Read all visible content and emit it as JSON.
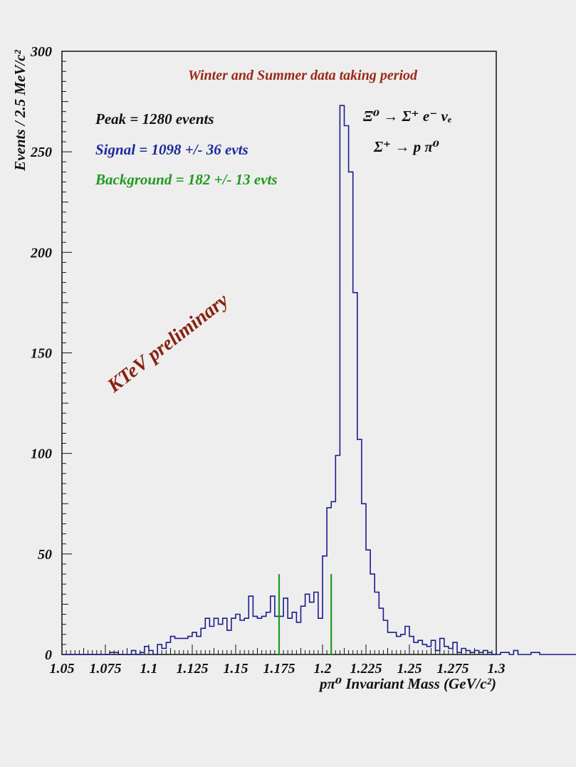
{
  "chart_data": {
    "type": "histogram",
    "title": "Winter and Summer data taking period",
    "xlabel": "pπ⁰ Invariant Mass (GeV/c²)",
    "ylabel": "Events / 2.5 MeV/c²",
    "xlim": [
      1.05,
      1.3
    ],
    "ylim": [
      0,
      300
    ],
    "x_ticks": [
      "1.05",
      "1.075",
      "1.1",
      "1.125",
      "1.15",
      "1.175",
      "1.2",
      "1.225",
      "1.25",
      "1.275",
      "1.3"
    ],
    "y_ticks": [
      "0",
      "50",
      "100",
      "150",
      "200",
      "250",
      "300"
    ],
    "bin_width": 0.0025,
    "bin_start": 1.05,
    "counts": [
      0,
      0,
      0,
      0,
      0,
      0,
      0,
      0,
      0,
      0,
      0,
      1,
      1,
      0,
      0,
      0,
      2,
      0,
      1,
      4,
      2,
      0,
      5,
      3,
      6,
      9,
      8,
      8,
      8,
      9,
      11,
      9,
      13,
      18,
      14,
      18,
      15,
      18,
      12,
      18,
      20,
      17,
      18,
      29,
      19,
      18,
      19,
      21,
      29,
      19,
      19,
      28,
      18,
      21,
      16,
      24,
      30,
      26,
      31,
      18,
      49,
      73,
      76,
      99,
      273,
      263,
      240,
      180,
      107,
      75,
      52,
      40,
      31,
      23,
      17,
      11,
      11,
      9,
      10,
      14,
      9,
      6,
      7,
      5,
      4,
      7,
      2,
      8,
      4,
      3,
      6,
      1,
      3,
      2,
      1,
      2,
      1,
      2,
      1,
      0,
      0,
      1,
      1,
      0,
      2,
      0,
      0,
      0,
      1,
      1,
      0,
      0,
      0,
      0,
      0,
      0,
      0,
      0,
      0,
      0
    ],
    "series_color": "#1c1c8c",
    "cut_lines": {
      "x": [
        1.175,
        1.205
      ],
      "height": 40,
      "color": "#1e9a1e"
    },
    "annotations": {
      "peak": "Peak = 1280 events",
      "signal": "Signal = 1098 +/- 36 evts",
      "background": "Background = 182 +/- 13 evts",
      "decay1": "Ξ⁰ → Σ⁺ e⁻ νₑ",
      "decay2": "Σ⁺ → p π⁰",
      "watermark": "KTeV preliminary"
    },
    "colors": {
      "title": "#9a2a1a",
      "peak": "#111111",
      "signal": "#1c2a99",
      "background": "#1e9a1e",
      "watermark": "#8a2010"
    }
  }
}
